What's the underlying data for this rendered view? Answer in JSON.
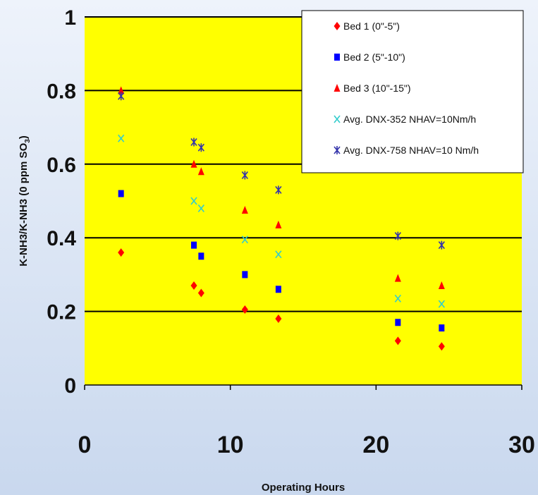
{
  "chart_data": {
    "type": "scatter",
    "title": "",
    "xlabel": "Operating Hours",
    "ylabel": "K-NH3/K-NH3 (0 ppm SO3)",
    "ylabel_parts": [
      "K-NH3/K-NH3 (0 ppm SO",
      "3",
      ")"
    ],
    "xlim": [
      0,
      30
    ],
    "ylim": [
      0,
      1
    ],
    "x_ticks": [
      "0",
      "10",
      "20",
      "30"
    ],
    "y_ticks": [
      "0",
      "0.2",
      "0.4",
      "0.6",
      "0.8",
      "1"
    ],
    "grid": "horizontal",
    "legend_position": "top-right",
    "plot_background": "#ffff00",
    "series": [
      {
        "name": "Bed 1 (0\"-5\")",
        "marker": "diamond",
        "color": "#ff0000",
        "points": [
          [
            2.5,
            0.36
          ],
          [
            7.5,
            0.27
          ],
          [
            8.0,
            0.25
          ],
          [
            11.0,
            0.205
          ],
          [
            13.3,
            0.18
          ],
          [
            21.5,
            0.12
          ],
          [
            24.5,
            0.105
          ]
        ]
      },
      {
        "name": "Bed 2 (5\"-10\")",
        "marker": "square",
        "color": "#0000ff",
        "points": [
          [
            2.5,
            0.52
          ],
          [
            7.5,
            0.38
          ],
          [
            8.0,
            0.35
          ],
          [
            11.0,
            0.3
          ],
          [
            13.3,
            0.26
          ],
          [
            21.5,
            0.17
          ],
          [
            24.5,
            0.155
          ]
        ]
      },
      {
        "name": "Bed 3 (10\"-15\")",
        "marker": "triangle",
        "color": "#ff0000",
        "points": [
          [
            2.5,
            0.8
          ],
          [
            7.5,
            0.6
          ],
          [
            8.0,
            0.58
          ],
          [
            11.0,
            0.475
          ],
          [
            13.3,
            0.435
          ],
          [
            21.5,
            0.29
          ],
          [
            24.5,
            0.27
          ]
        ]
      },
      {
        "name": "Avg. DNX-352 NHAV=10Nm/h",
        "marker": "x",
        "color": "#33cccc",
        "points": [
          [
            2.5,
            0.67
          ],
          [
            7.5,
            0.5
          ],
          [
            8.0,
            0.48
          ],
          [
            11.0,
            0.395
          ],
          [
            13.3,
            0.355
          ],
          [
            21.5,
            0.235
          ],
          [
            24.5,
            0.22
          ]
        ]
      },
      {
        "name": "Avg. DNX-758 NHAV=10 Nm/h",
        "marker": "asterisk",
        "color": "#3333aa",
        "points": [
          [
            2.5,
            0.785
          ],
          [
            7.5,
            0.66
          ],
          [
            8.0,
            0.645
          ],
          [
            11.0,
            0.57
          ],
          [
            13.3,
            0.53
          ],
          [
            21.5,
            0.405
          ],
          [
            24.5,
            0.38
          ]
        ]
      }
    ]
  }
}
